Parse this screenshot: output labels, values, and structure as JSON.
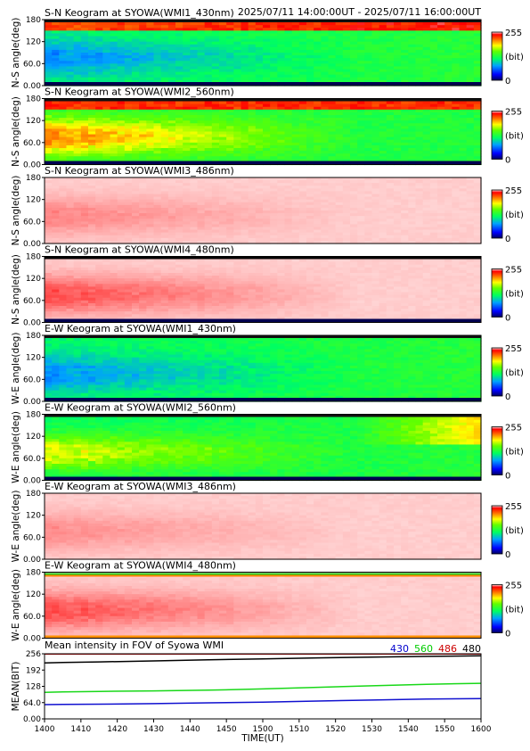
{
  "header": {
    "time_range": "2025/07/11 14:00:00UT - 2025/07/11 16:00:00UT"
  },
  "chart_data": [
    {
      "type": "heatmap",
      "title": "S-N Keogram at SYOWA(WMI1_430nm)",
      "ylabel": "N-S angle(deg)",
      "yticks": [
        "0.00",
        "60.0",
        "120",
        "180"
      ],
      "ylim": [
        0,
        180
      ],
      "colorbar": {
        "max": "255",
        "unit": "(bit)",
        "min": "0"
      },
      "colormap": "rainbow",
      "pattern": "green field with blue low-intensity region 30-110 deg early in interval; bright band near 175 deg at start",
      "base_level": 0.45,
      "feature_level": 0.24,
      "band": {
        "side": "top",
        "level": 0.92
      },
      "edges": "dark"
    },
    {
      "type": "heatmap",
      "title": "S-N Keogram at SYOWA(WMI2_560nm)",
      "ylabel": "N-S angle(deg)",
      "yticks": [
        "0.00",
        "60.0",
        "120",
        "180"
      ],
      "ylim": [
        0,
        180
      ],
      "colorbar": {
        "max": "255",
        "unit": "(bit)",
        "min": "0"
      },
      "colormap": "rainbow",
      "pattern": "green-yellow field with red/orange auroral band at 150-180 deg throughout interval",
      "base_level": 0.5,
      "feature_level": 0.9,
      "band": {
        "side": "top",
        "level": 0.95
      },
      "edges": "dark"
    },
    {
      "type": "heatmap",
      "title": "S-N Keogram at SYOWA(WMI3_486nm)",
      "ylabel": "N-S angle(deg)",
      "yticks": [
        "0.00",
        "60.0",
        "120",
        "180"
      ],
      "ylim": [
        0,
        180
      ],
      "colorbar": {
        "max": "255",
        "unit": "(bit)",
        "min": "0"
      },
      "colormap": "pink",
      "pattern": "saturated pale field, red patches 40-120 deg fading by 15:10",
      "base_level": 0.15,
      "feature_level": 0.55,
      "band": null,
      "edges": "light"
    },
    {
      "type": "heatmap",
      "title": "S-N Keogram at SYOWA(WMI4_480nm)",
      "ylabel": "N-S angle(deg)",
      "yticks": [
        "0.00",
        "60.0",
        "120",
        "180"
      ],
      "ylim": [
        0,
        180
      ],
      "colorbar": {
        "max": "255",
        "unit": "(bit)",
        "min": "0"
      },
      "colormap": "pink",
      "pattern": "strong red 20-110 deg at start, decreasing through 15:30",
      "base_level": 0.15,
      "feature_level": 0.85,
      "band": null,
      "edges": "dark"
    },
    {
      "type": "heatmap",
      "title": "E-W Keogram at SYOWA(WMI1_430nm)",
      "ylabel": "W-E angle(deg)",
      "yticks": [
        "0.00",
        "60.0",
        "120",
        "180"
      ],
      "ylim": [
        0,
        180
      ],
      "colorbar": {
        "max": "255",
        "unit": "(bit)",
        "min": "0"
      },
      "colormap": "rainbow",
      "pattern": "green field with blue regions early in interval, dark bottom edge",
      "base_level": 0.45,
      "feature_level": 0.25,
      "band": null,
      "edges": "dark"
    },
    {
      "type": "heatmap",
      "title": "E-W Keogram at SYOWA(WMI2_560nm)",
      "ylabel": "W-E angle(deg)",
      "yticks": [
        "0.00",
        "60.0",
        "120",
        "180"
      ],
      "ylim": [
        0,
        180
      ],
      "colorbar": {
        "max": "255",
        "unit": "(bit)",
        "min": "0"
      },
      "colormap": "rainbow",
      "pattern": "green field brightening to yellow-orange at high angles after 15:30",
      "base_level": 0.45,
      "feature_level": 0.75,
      "band": null,
      "edges": "dark"
    },
    {
      "type": "heatmap",
      "title": "E-W Keogram at SYOWA(WMI3_486nm)",
      "ylabel": "W-E angle(deg)",
      "yticks": [
        "0.00",
        "60.0",
        "120",
        "180"
      ],
      "ylim": [
        0,
        180
      ],
      "colorbar": {
        "max": "255",
        "unit": "(bit)",
        "min": "0"
      },
      "colormap": "pink",
      "pattern": "pale field with red streaks 20-170 deg early, fading by 15:10",
      "base_level": 0.15,
      "feature_level": 0.5,
      "band": null,
      "edges": "light"
    },
    {
      "type": "heatmap",
      "title": "E-W Keogram at SYOWA(WMI4_480nm)",
      "ylabel": "W-E angle(deg)",
      "yticks": [
        "0.00",
        "60.0",
        "120",
        "180"
      ],
      "ylim": [
        0,
        180
      ],
      "colorbar": {
        "max": "255",
        "unit": "(bit)",
        "min": "0"
      },
      "colormap": "pink",
      "pattern": "strong red wide region at start with diagonal streaks, fading by 15:30; thin green/orange line near top",
      "base_level": 0.15,
      "feature_level": 0.85,
      "band": null,
      "edges": "colored"
    },
    {
      "type": "line",
      "title": "Mean intensity in FOV of Syowa WMI",
      "ylabel": "MEAN(BIT)",
      "xlabel": "TIME(UT)",
      "yticks": [
        "0.00",
        "64.0",
        "128",
        "192",
        "256"
      ],
      "ylim": [
        0,
        256
      ],
      "xticks": [
        "1400",
        "1410",
        "1420",
        "1430",
        "1440",
        "1450",
        "1500",
        "1510",
        "1520",
        "1530",
        "1540",
        "1550",
        "1600"
      ],
      "xlim": [
        0,
        120
      ],
      "legend": [
        {
          "name": "430",
          "color": "#0000cc"
        },
        {
          "name": "560",
          "color": "#00cc00"
        },
        {
          "name": "486",
          "color": "#cc0000"
        },
        {
          "name": "480",
          "color": "#000000"
        }
      ],
      "series": [
        {
          "name": "430",
          "color": "#1010d0",
          "x": [
            0,
            5,
            15,
            30,
            45,
            60,
            75,
            90,
            105,
            120
          ],
          "values": [
            56,
            57,
            58,
            60,
            63,
            66,
            70,
            74,
            78,
            80
          ]
        },
        {
          "name": "560",
          "color": "#18d818",
          "x": [
            0,
            5,
            15,
            30,
            45,
            60,
            75,
            90,
            105,
            120
          ],
          "values": [
            104,
            106,
            108,
            110,
            113,
            118,
            124,
            130,
            136,
            140
          ]
        },
        {
          "name": "486",
          "color": "#d01010",
          "x": [
            0,
            30,
            60,
            90,
            120
          ],
          "values": [
            255,
            255,
            255,
            255,
            255
          ]
        },
        {
          "name": "480",
          "color": "#000000",
          "x": [
            0,
            5,
            15,
            30,
            45,
            60,
            75,
            90,
            105,
            120
          ],
          "values": [
            220,
            222,
            224,
            228,
            232,
            236,
            240,
            243,
            246,
            248
          ]
        }
      ]
    }
  ]
}
